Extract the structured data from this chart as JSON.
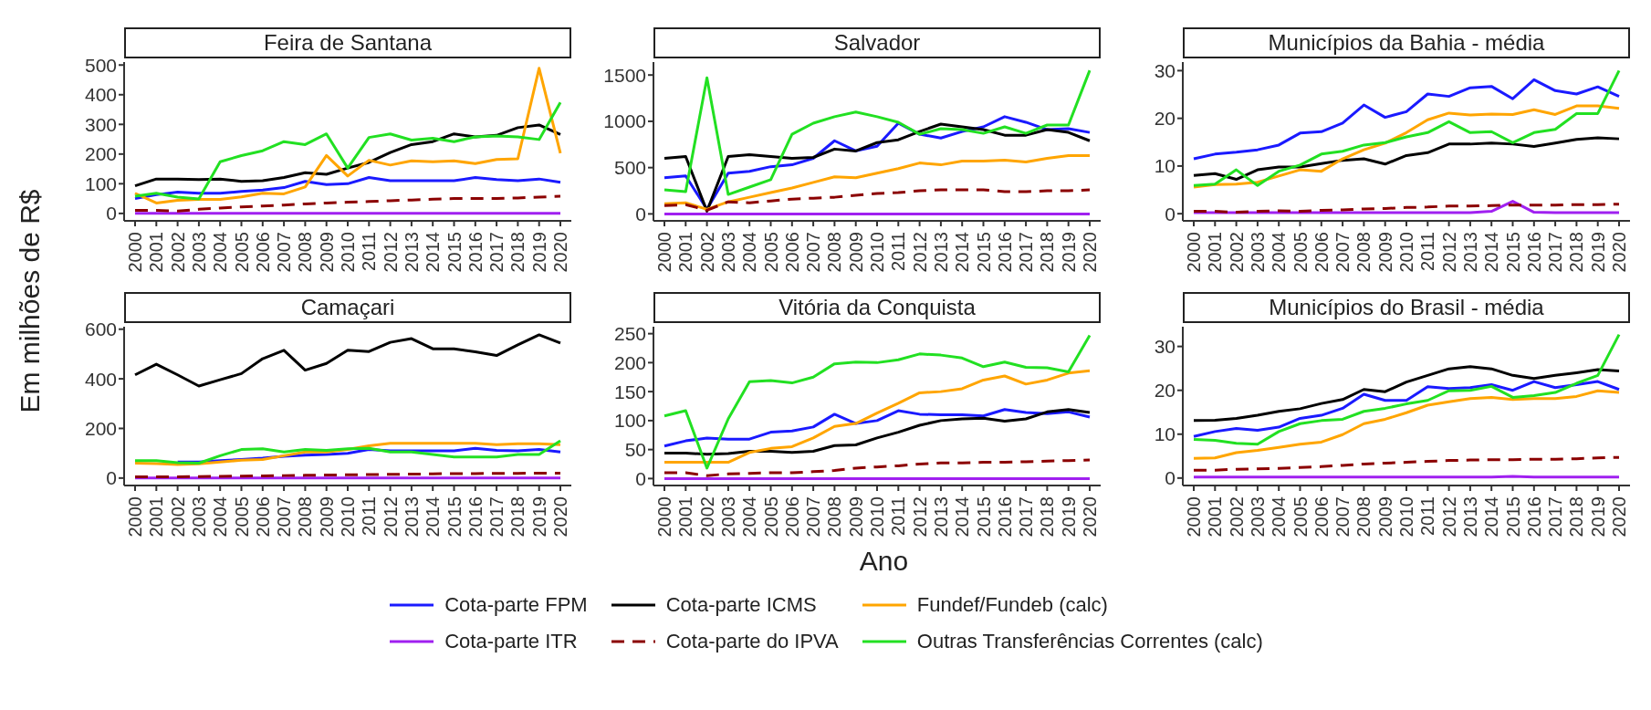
{
  "chart_data": [
    {
      "type": "line",
      "title": "Feira de Santana",
      "ylabel": "Em milhões de R$",
      "legend": "bottom",
      "categories": [
        "2000",
        "2001",
        "2002",
        "2003",
        "2004",
        "2005",
        "2006",
        "2007",
        "2008",
        "2009",
        "2010",
        "2011",
        "2012",
        "2013",
        "2014",
        "2015",
        "2016",
        "2017",
        "2018",
        "2019",
        "2020"
      ],
      "ylim": [
        -25,
        510
      ],
      "yticks": [
        0,
        100,
        200,
        300,
        400,
        500
      ],
      "series": [
        {
          "name": "Cota-parte FPM",
          "color": "#1a1aff",
          "values": [
            50,
            63,
            72,
            68,
            68,
            74,
            79,
            87,
            108,
            97,
            100,
            121,
            110,
            110,
            110,
            110,
            121,
            114,
            110,
            116,
            105
          ]
        },
        {
          "name": "Cota-parte ICMS",
          "color": "#000000",
          "values": [
            93,
            116,
            116,
            114,
            116,
            108,
            110,
            121,
            137,
            132,
            153,
            172,
            205,
            232,
            242,
            268,
            258,
            263,
            289,
            298,
            266
          ]
        },
        {
          "name": "Fundef/Fundeb (calc)",
          "color": "#ffa500",
          "values": [
            68,
            35,
            44,
            47,
            47,
            56,
            68,
            66,
            89,
            195,
            126,
            179,
            163,
            177,
            174,
            177,
            168,
            182,
            184,
            489,
            203
          ]
        },
        {
          "name": "Cota-parte ITR",
          "color": "#a020f0",
          "values": [
            0,
            0,
            0,
            0,
            0,
            0,
            0,
            0,
            0,
            0,
            0,
            0,
            0,
            0,
            0,
            0,
            0,
            0,
            0,
            0,
            0
          ]
        },
        {
          "name": "Cota-parte do IPVA",
          "color": "#8b0000",
          "line_style": "dashed",
          "values": [
            10,
            10,
            8,
            14,
            18,
            22,
            25,
            28,
            32,
            35,
            38,
            40,
            43,
            45,
            48,
            50,
            50,
            50,
            52,
            55,
            58
          ]
        },
        {
          "name": "Outras Transferências Correntes (calc)",
          "color": "#22e022",
          "values": [
            58,
            68,
            55,
            49,
            174,
            195,
            211,
            242,
            232,
            268,
            153,
            256,
            268,
            247,
            253,
            242,
            258,
            261,
            258,
            249,
            374
          ]
        }
      ]
    },
    {
      "type": "line",
      "title": "Salvador",
      "categories": [
        "2000",
        "2001",
        "2002",
        "2003",
        "2004",
        "2005",
        "2006",
        "2007",
        "2008",
        "2009",
        "2010",
        "2011",
        "2012",
        "2013",
        "2014",
        "2015",
        "2016",
        "2017",
        "2018",
        "2019",
        "2020"
      ],
      "ylim": [
        -75,
        1640
      ],
      "yticks": [
        0,
        500,
        1000,
        1500
      ],
      "series": [
        {
          "color": "#1a1aff",
          "values": [
            390,
            410,
            50,
            440,
            460,
            510,
            530,
            600,
            790,
            680,
            730,
            980,
            860,
            820,
            890,
            940,
            1050,
            990,
            910,
            920,
            880
          ]
        },
        {
          "color": "#000000",
          "values": [
            600,
            620,
            30,
            620,
            640,
            620,
            600,
            610,
            700,
            680,
            770,
            800,
            890,
            970,
            940,
            910,
            850,
            850,
            910,
            880,
            790
          ]
        },
        {
          "color": "#ffa500",
          "values": [
            110,
            120,
            50,
            130,
            180,
            230,
            280,
            340,
            400,
            390,
            440,
            490,
            550,
            530,
            570,
            570,
            580,
            560,
            600,
            630,
            630
          ]
        },
        {
          "color": "#a020f0",
          "values": [
            0,
            0,
            0,
            0,
            0,
            0,
            0,
            0,
            0,
            0,
            0,
            0,
            0,
            0,
            0,
            0,
            0,
            0,
            0,
            0,
            0
          ]
        },
        {
          "color": "#8b0000",
          "line_style": "dashed",
          "values": [
            90,
            100,
            40,
            130,
            120,
            140,
            160,
            170,
            180,
            200,
            220,
            230,
            250,
            260,
            260,
            260,
            240,
            240,
            250,
            250,
            260
          ]
        },
        {
          "color": "#22e022",
          "values": [
            260,
            240,
            1470,
            210,
            290,
            370,
            860,
            980,
            1050,
            1100,
            1050,
            990,
            860,
            920,
            910,
            870,
            940,
            870,
            960,
            960,
            1550
          ]
        }
      ]
    },
    {
      "type": "line",
      "title": "Municípios da Bahia - média",
      "categories": [
        "2000",
        "2001",
        "2002",
        "2003",
        "2004",
        "2005",
        "2006",
        "2007",
        "2008",
        "2009",
        "2010",
        "2011",
        "2012",
        "2013",
        "2014",
        "2015",
        "2016",
        "2017",
        "2018",
        "2019",
        "2020"
      ],
      "ylim": [
        -1.5,
        31.8
      ],
      "yticks": [
        0,
        10,
        20,
        30
      ],
      "series": [
        {
          "color": "#1a1aff",
          "values": [
            11.5,
            12.5,
            12.9,
            13.4,
            14.4,
            16.9,
            17.2,
            19.0,
            22.8,
            20.2,
            21.4,
            25.1,
            24.6,
            26.4,
            26.7,
            24.1,
            28.1,
            25.8,
            25.1,
            26.6,
            24.6
          ]
        },
        {
          "color": "#000000",
          "values": [
            8.0,
            8.4,
            7.2,
            9.2,
            9.8,
            9.8,
            10.5,
            11.2,
            11.5,
            10.4,
            12.2,
            12.8,
            14.6,
            14.6,
            14.8,
            14.6,
            14.1,
            14.8,
            15.6,
            15.9,
            15.7
          ]
        },
        {
          "color": "#ffa500",
          "values": [
            5.6,
            6.1,
            6.2,
            6.6,
            7.9,
            9.2,
            8.9,
            11.5,
            13.4,
            14.8,
            17.0,
            19.7,
            21.1,
            20.7,
            20.9,
            20.8,
            21.8,
            20.8,
            22.6,
            22.6,
            22.1
          ]
        },
        {
          "color": "#a020f0",
          "values": [
            0.2,
            0.2,
            0.2,
            0.2,
            0.2,
            0.2,
            0.2,
            0.2,
            0.2,
            0.2,
            0.2,
            0.2,
            0.2,
            0.2,
            0.5,
            2.6,
            0.3,
            0.2,
            0.2,
            0.2,
            0.2
          ]
        },
        {
          "color": "#8b0000",
          "line_style": "dashed",
          "values": [
            0.5,
            0.5,
            0.3,
            0.5,
            0.6,
            0.5,
            0.7,
            0.8,
            1.0,
            1.1,
            1.3,
            1.4,
            1.6,
            1.6,
            1.7,
            1.8,
            1.8,
            1.8,
            1.9,
            1.9,
            2.0
          ]
        },
        {
          "color": "#22e022",
          "values": [
            5.9,
            6.2,
            9.2,
            5.9,
            8.9,
            10.2,
            12.5,
            13.1,
            14.4,
            14.9,
            16.1,
            17.0,
            19.3,
            17.0,
            17.2,
            14.9,
            17.0,
            17.7,
            21.0,
            21.0,
            30.0
          ]
        }
      ]
    },
    {
      "type": "line",
      "title": "Camaçari",
      "categories": [
        "2000",
        "2001",
        "2002",
        "2003",
        "2004",
        "2005",
        "2006",
        "2007",
        "2008",
        "2009",
        "2010",
        "2011",
        "2012",
        "2013",
        "2014",
        "2015",
        "2016",
        "2017",
        "2018",
        "2019",
        "2020"
      ],
      "ylim": [
        -30,
        610
      ],
      "yticks": [
        0,
        200,
        400,
        600
      ],
      "series": [
        {
          "color": "#1a1aff",
          "values": [
            null,
            null,
            65,
            65,
            70,
            75,
            80,
            88,
            92,
            95,
            100,
            115,
            110,
            110,
            110,
            110,
            120,
            112,
            110,
            115,
            105
          ]
        },
        {
          "color": "#000000",
          "values": [
            416,
            459,
            416,
            371,
            396,
            421,
            481,
            515,
            435,
            462,
            515,
            510,
            547,
            562,
            521,
            521,
            509,
            494,
            537,
            577,
            544
          ]
        },
        {
          "color": "#ffa500",
          "values": [
            60,
            58,
            55,
            57,
            65,
            72,
            75,
            90,
            105,
            105,
            115,
            130,
            140,
            140,
            140,
            140,
            140,
            135,
            138,
            138,
            135
          ]
        },
        {
          "color": "#a020f0",
          "values": [
            0,
            0,
            0,
            0,
            0,
            0,
            0,
            0,
            0,
            0,
            0,
            0,
            0,
            0,
            0,
            0,
            0,
            0,
            0,
            0,
            0
          ]
        },
        {
          "color": "#8b0000",
          "line_style": "dashed",
          "values": [
            5,
            5,
            5,
            6,
            7,
            8,
            9,
            10,
            11,
            12,
            13,
            14,
            15,
            16,
            17,
            18,
            18,
            19,
            19,
            20,
            20
          ]
        },
        {
          "color": "#22e022",
          "values": [
            70,
            70,
            62,
            60,
            90,
            115,
            118,
            105,
            115,
            112,
            118,
            120,
            105,
            105,
            95,
            85,
            85,
            85,
            95,
            95,
            150
          ]
        }
      ]
    },
    {
      "type": "line",
      "title": "Vitória da Conquista",
      "xlabel": "Ano",
      "categories": [
        "2000",
        "2001",
        "2002",
        "2003",
        "2004",
        "2005",
        "2006",
        "2007",
        "2008",
        "2009",
        "2010",
        "2011",
        "2012",
        "2013",
        "2014",
        "2015",
        "2016",
        "2017",
        "2018",
        "2019",
        "2020"
      ],
      "ylim": [
        -12,
        262
      ],
      "yticks": [
        0,
        50,
        100,
        150,
        200,
        250
      ],
      "series": [
        {
          "color": "#1a1aff",
          "values": [
            56,
            65,
            70,
            68,
            68,
            80,
            82,
            89,
            111,
            95,
            100,
            117,
            111,
            110,
            110,
            108,
            119,
            114,
            112,
            115,
            106
          ]
        },
        {
          "color": "#000000",
          "values": [
            44,
            44,
            42,
            43,
            47,
            47,
            45,
            47,
            57,
            58,
            70,
            80,
            92,
            100,
            103,
            104,
            99,
            103,
            115,
            119,
            114
          ]
        },
        {
          "color": "#ffa500",
          "values": [
            28,
            28,
            28,
            28,
            45,
            52,
            55,
            70,
            90,
            95,
            113,
            130,
            148,
            150,
            155,
            170,
            177,
            163,
            170,
            182,
            186
          ]
        },
        {
          "color": "#a020f0",
          "values": [
            0,
            0,
            0,
            0,
            0,
            0,
            0,
            0,
            0,
            0,
            0,
            0,
            0,
            0,
            0,
            0,
            0,
            0,
            0,
            0,
            0
          ]
        },
        {
          "color": "#8b0000",
          "line_style": "dashed",
          "values": [
            10,
            10,
            5,
            8,
            9,
            10,
            10,
            12,
            14,
            18,
            20,
            22,
            25,
            27,
            27,
            28,
            28,
            29,
            30,
            31,
            32
          ]
        },
        {
          "color": "#22e022",
          "values": [
            108,
            117,
            18,
            103,
            167,
            169,
            165,
            175,
            198,
            201,
            200,
            205,
            215,
            213,
            208,
            193,
            201,
            192,
            191,
            184,
            247
          ]
        }
      ]
    },
    {
      "type": "line",
      "title": "Municípios do Brasil - média",
      "categories": [
        "2000",
        "2001",
        "2002",
        "2003",
        "2004",
        "2005",
        "2006",
        "2007",
        "2008",
        "2009",
        "2010",
        "2011",
        "2012",
        "2013",
        "2014",
        "2015",
        "2016",
        "2017",
        "2018",
        "2019",
        "2020"
      ],
      "ylim": [
        -1.7,
        34.5
      ],
      "yticks": [
        0,
        10,
        20,
        30
      ],
      "series": [
        {
          "color": "#1a1aff",
          "values": [
            9.5,
            10.6,
            11.3,
            10.9,
            11.6,
            13.6,
            14.3,
            15.9,
            19.1,
            17.7,
            17.7,
            20.8,
            20.4,
            20.6,
            21.3,
            20.0,
            22.0,
            20.6,
            21.3,
            22.0,
            20.2
          ]
        },
        {
          "color": "#000000",
          "values": [
            13.1,
            13.2,
            13.6,
            14.3,
            15.2,
            15.8,
            17.0,
            17.9,
            20.2,
            19.7,
            21.9,
            23.4,
            24.9,
            25.4,
            24.9,
            23.4,
            22.7,
            23.4,
            24.0,
            24.7,
            24.4
          ]
        },
        {
          "color": "#ffa500",
          "values": [
            4.5,
            4.6,
            5.8,
            6.3,
            7.0,
            7.7,
            8.2,
            9.9,
            12.4,
            13.4,
            14.9,
            16.6,
            17.4,
            18.1,
            18.4,
            17.9,
            18.1,
            18.1,
            18.6,
            19.9,
            19.5
          ]
        },
        {
          "color": "#a020f0",
          "values": [
            0.2,
            0.2,
            0.2,
            0.2,
            0.2,
            0.2,
            0.2,
            0.2,
            0.2,
            0.2,
            0.2,
            0.2,
            0.2,
            0.2,
            0.2,
            0.4,
            0.2,
            0.2,
            0.2,
            0.2,
            0.2
          ]
        },
        {
          "color": "#8b0000",
          "line_style": "dashed",
          "values": [
            1.8,
            1.8,
            2.0,
            2.1,
            2.2,
            2.4,
            2.6,
            2.9,
            3.2,
            3.4,
            3.6,
            3.8,
            4.0,
            4.1,
            4.2,
            4.2,
            4.3,
            4.3,
            4.4,
            4.6,
            4.7
          ]
        },
        {
          "color": "#22e022",
          "values": [
            8.8,
            8.6,
            7.9,
            7.7,
            10.6,
            12.4,
            13.1,
            13.4,
            15.2,
            15.9,
            16.9,
            17.7,
            19.9,
            20.0,
            20.9,
            18.4,
            18.8,
            19.5,
            21.6,
            23.4,
            32.7
          ]
        }
      ]
    }
  ]
}
